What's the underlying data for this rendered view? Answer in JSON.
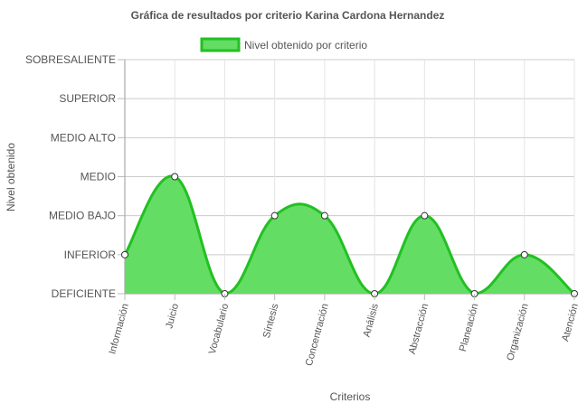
{
  "chart_data": {
    "type": "area",
    "title": "Gráfica de resultados por criterio Karina Cardona Hernandez",
    "xlabel": "Criterios",
    "ylabel": "Nivel obtenido",
    "legend_position": "top-center",
    "grid": true,
    "categories": [
      "Información",
      "Juicio",
      "Vocabulario",
      "Síntesis",
      "Concentración",
      "Análisis",
      "Abstracción",
      "Planeación",
      "Organización",
      "Atención"
    ],
    "y_levels": [
      "DEFICIENTE",
      "INFERIOR",
      "MEDIO BAJO",
      "MEDIO",
      "MEDIO ALTO",
      "SUPERIOR",
      "SOBRESALIENTE"
    ],
    "ylim": [
      0,
      6
    ],
    "series": [
      {
        "name": "Nivel obtenido por criterio",
        "values": [
          1,
          3,
          0,
          2,
          2,
          0,
          2,
          0,
          1,
          0
        ],
        "fill_color": "#63dd63",
        "line_color": "#22c022"
      }
    ]
  }
}
